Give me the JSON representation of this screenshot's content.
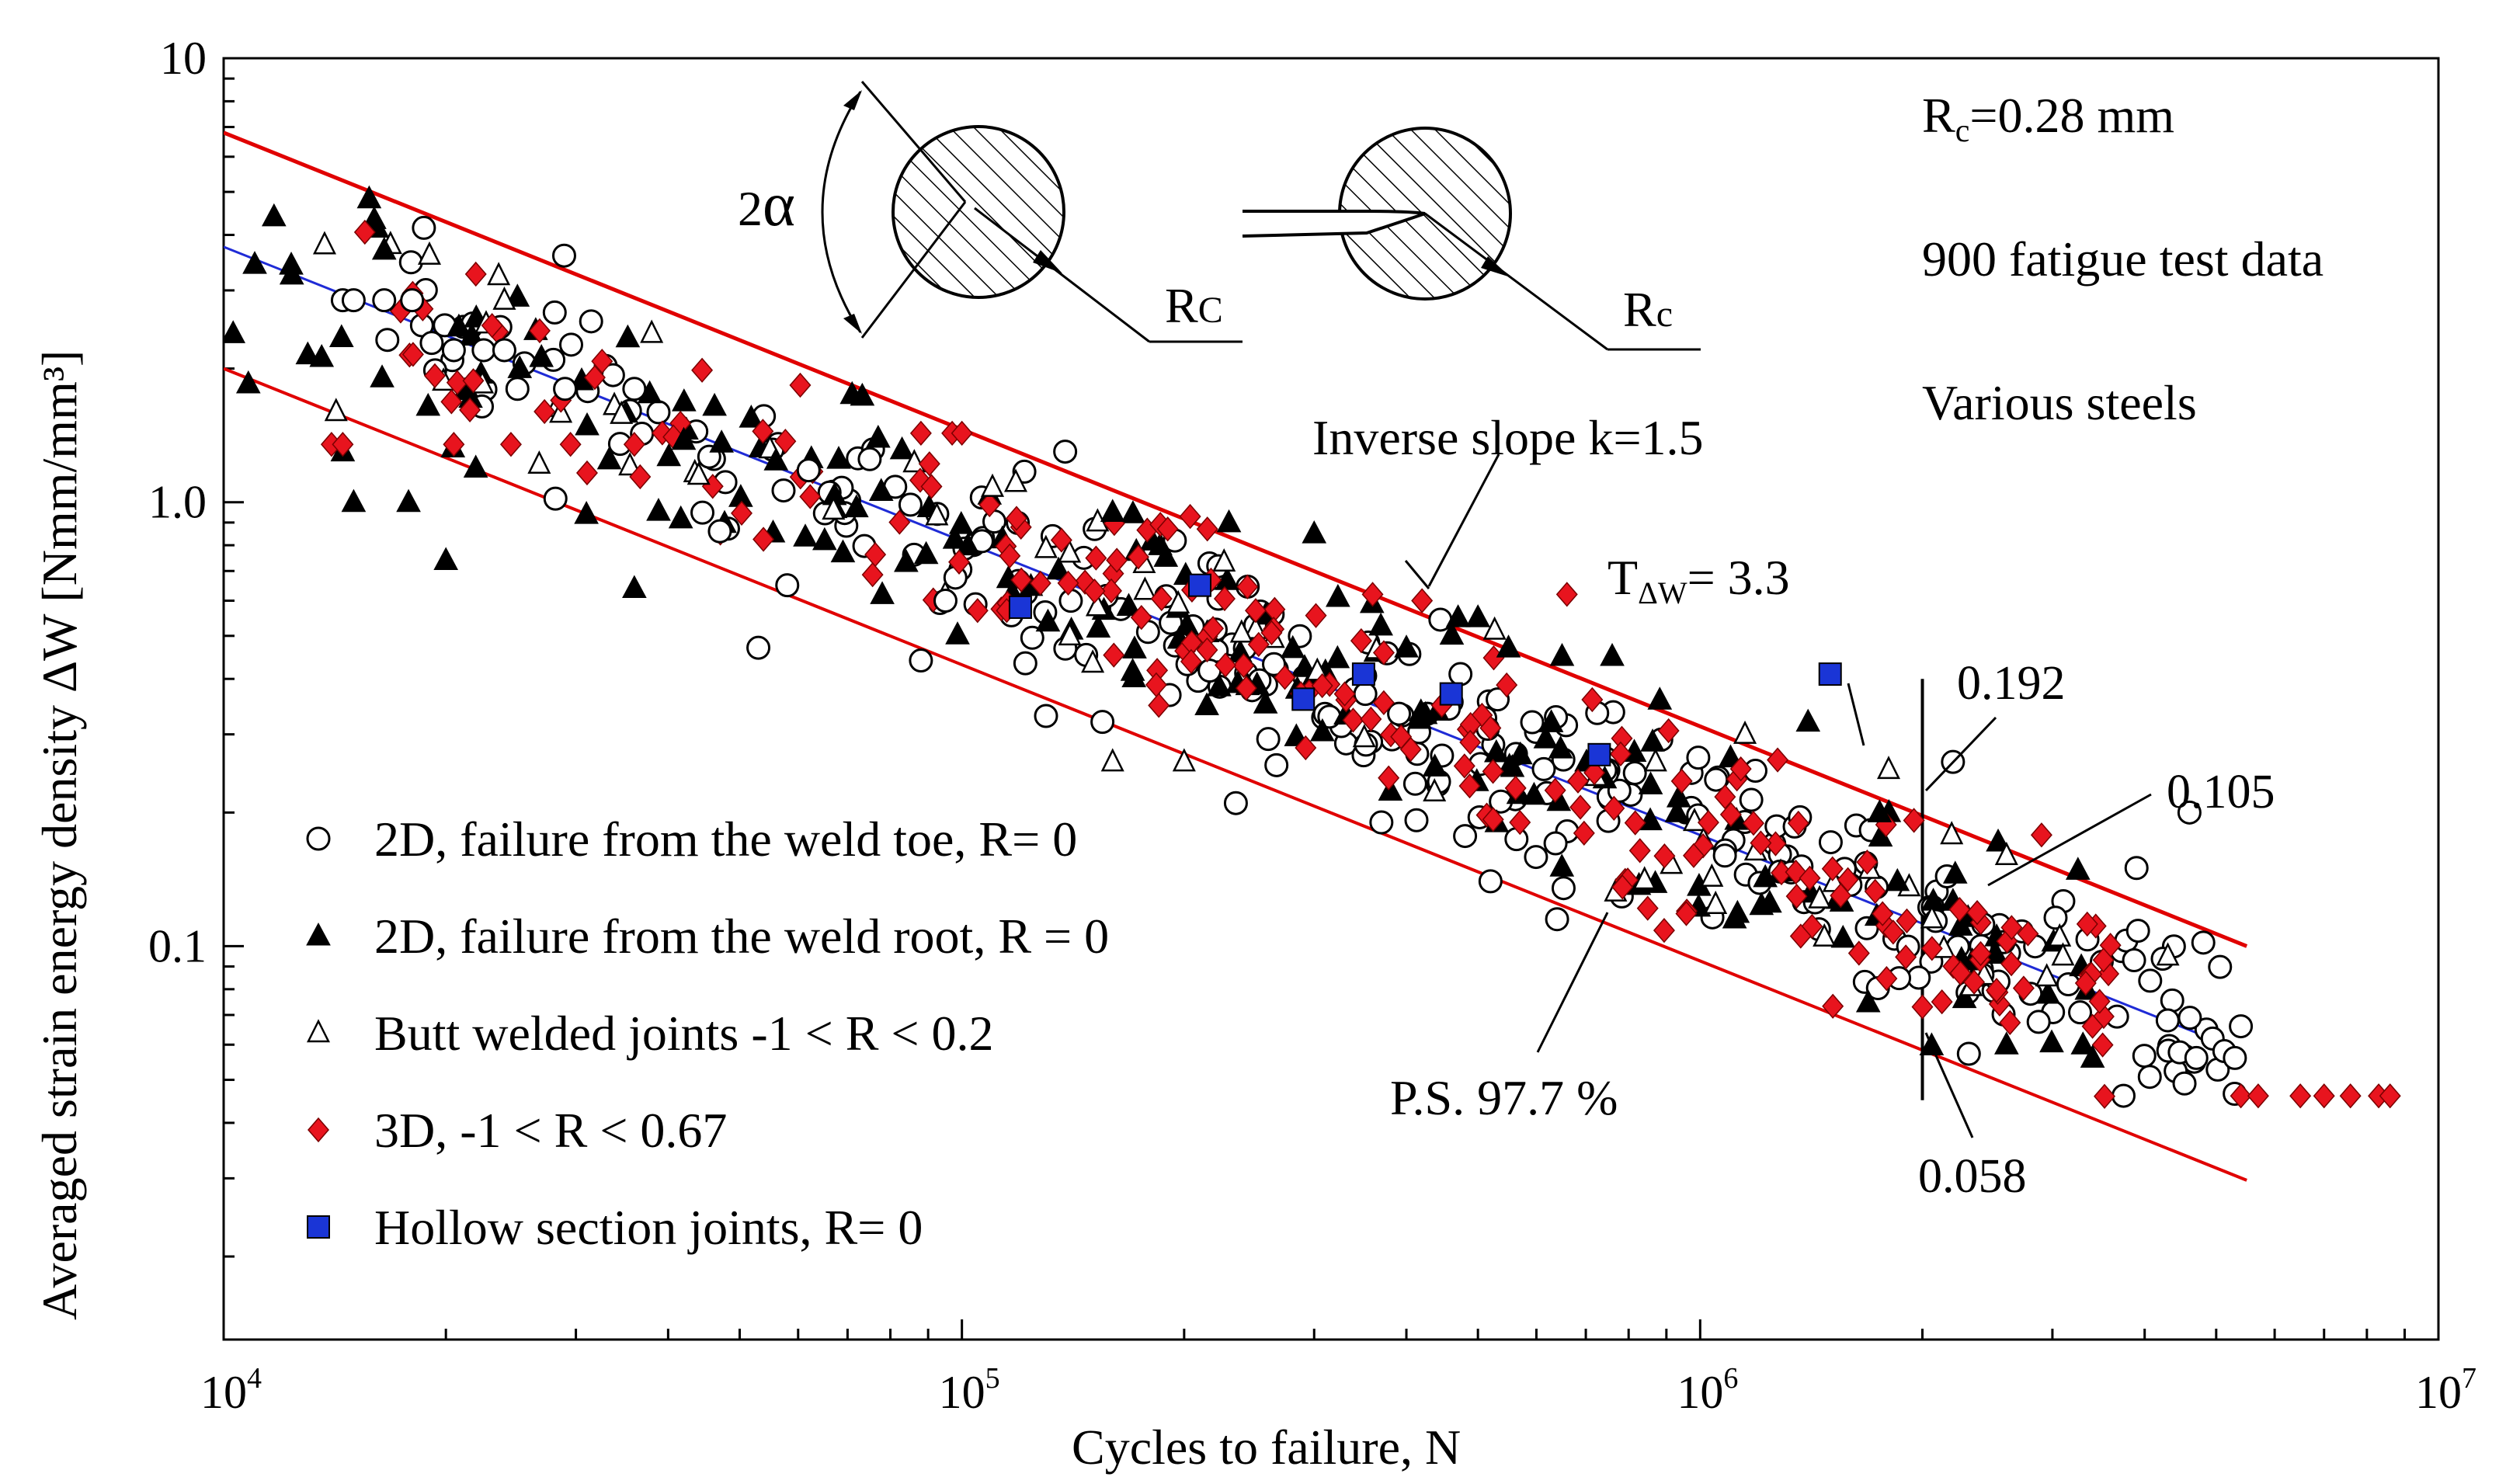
{
  "chart_data": {
    "type": "scatter",
    "xscale": "log",
    "yscale": "log",
    "xlim": [
      10000,
      10000000
    ],
    "ylim": [
      0.013,
      10
    ],
    "grid": false,
    "title": "",
    "xlabel": "Cycles to failure, N",
    "ylabel": "Averaged strain energy density ΔW [Nmm/mm³]",
    "x_ticks": [
      {
        "value": 10000,
        "base": "10",
        "exp": "4"
      },
      {
        "value": 100000,
        "base": "10",
        "exp": "5"
      },
      {
        "value": 1000000,
        "base": "10",
        "exp": "6"
      },
      {
        "value": 10000000,
        "base": "10",
        "exp": "7"
      }
    ],
    "y_ticks": [
      {
        "value": 10,
        "label": "10"
      },
      {
        "value": 1,
        "label": "1.0"
      },
      {
        "value": 0.1,
        "label": "0.1"
      }
    ],
    "legend_position": "bottom-left",
    "legend": [
      {
        "marker": "open-circle",
        "label": "2D, failure from the weld toe, R= 0"
      },
      {
        "marker": "filled-triangle",
        "label": "2D, failure from the weld root, R = 0"
      },
      {
        "marker": "open-triangle",
        "label": "Butt welded joints -1 < R < 0.2"
      },
      {
        "marker": "red-diamond",
        "label": "3D, -1 < R < 0.67"
      },
      {
        "marker": "blue-square",
        "label": "Hollow section joints, R= 0"
      }
    ],
    "scatter_bands": [
      {
        "series": "2D, failure from the weld toe, R= 0",
        "n": 280,
        "x_range": [
          14000,
          5300000
        ],
        "spread": 0.6,
        "seed": 11
      },
      {
        "series": "2D, failure from the weld root, R = 0",
        "n": 170,
        "x_range": [
          10200,
          3400000
        ],
        "spread": 0.72,
        "seed": 23
      },
      {
        "series": "Butt welded joints -1 < R < 0.2",
        "n": 55,
        "x_range": [
          14000,
          4600000
        ],
        "spread": 0.6,
        "seed": 37
      },
      {
        "series": "3D, -1 < R < 0.67",
        "n": 200,
        "x_range": [
          14000,
          3600000
        ],
        "spread": 0.62,
        "seed": 51
      }
    ],
    "series": [
      {
        "name": "2D, failure from the weld toe, R= 0",
        "marker": "open-circle",
        "points": [
          [
            14500,
            2.85
          ],
          [
            15000,
            2.85
          ],
          [
            16500,
            2.85
          ],
          [
            18000,
            2.85
          ],
          [
            20500,
            2.2
          ],
          [
            22500,
            2.2
          ],
          [
            24000,
            2.2
          ],
          [
            25000,
            1.8
          ],
          [
            29000,
            1.8
          ],
          [
            36000,
            1.8
          ],
          [
            47000,
            0.86
          ],
          [
            53000,
            0.47
          ],
          [
            58000,
            0.65
          ],
          [
            62000,
            1.18
          ],
          [
            75000,
            1.25
          ],
          [
            88000,
            0.44
          ],
          [
            95000,
            0.6
          ],
          [
            130000,
            0.33
          ],
          [
            138000,
            1.3
          ],
          [
            155000,
            0.32
          ],
          [
            235000,
            0.21
          ],
          [
            370000,
            0.19
          ],
          [
            520000,
            0.14
          ],
          [
            640000,
            0.115
          ],
          [
            1080000,
            0.16
          ],
          [
            2200000,
            0.26
          ],
          [
            3900000,
            0.15
          ],
          [
            4600000,
            0.2
          ],
          [
            4700000,
            0.056
          ],
          [
            5300000,
            0.056
          ],
          [
            5400000,
            0.066
          ]
        ]
      },
      {
        "name": "2D, failure from the weld root, R = 0",
        "marker": "filled-triangle",
        "points": [
          [
            10300,
            2.4
          ],
          [
            10800,
            1.85
          ],
          [
            11700,
            4.4
          ],
          [
            13000,
            2.15
          ],
          [
            14500,
            1.3
          ],
          [
            15000,
            1.0
          ],
          [
            16500,
            3.7
          ],
          [
            17800,
            1.0
          ],
          [
            20000,
            0.74
          ],
          [
            25000,
            2.9
          ],
          [
            31000,
            0.94
          ],
          [
            36000,
            0.64
          ],
          [
            42000,
            1.38
          ],
          [
            56000,
            1.24
          ],
          [
            69000,
            0.77
          ],
          [
            71000,
            1.75
          ],
          [
            78000,
            0.62
          ],
          [
            160000,
            0.95
          ],
          [
            230000,
            0.9
          ],
          [
            300000,
            0.85
          ],
          [
            400000,
            0.47
          ],
          [
            470000,
            0.55
          ],
          [
            500000,
            0.55
          ],
          [
            550000,
            0.47
          ],
          [
            650000,
            0.45
          ],
          [
            760000,
            0.45
          ],
          [
            1400000,
            0.32
          ],
          [
            1750000,
            0.2
          ],
          [
            1850000,
            0.14
          ],
          [
            2600000,
            0.06
          ],
          [
            3300000,
            0.06
          ],
          [
            3400000,
            0.056
          ]
        ]
      },
      {
        "name": "Butt welded joints -1 < R < 0.2",
        "marker": "open-triangle",
        "points": [
          [
            13700,
            3.8
          ],
          [
            14200,
            1.6
          ],
          [
            19000,
            3.6
          ],
          [
            24000,
            2.85
          ],
          [
            38000,
            2.4
          ],
          [
            44000,
            1.15
          ],
          [
            67000,
            0.96
          ],
          [
            110000,
            1.08
          ],
          [
            140000,
            0.5
          ],
          [
            160000,
            0.26
          ],
          [
            200000,
            0.26
          ],
          [
            870000,
            0.26
          ],
          [
            1150000,
            0.3
          ],
          [
            1800000,
            0.25
          ],
          [
            2600000,
            0.16
          ],
          [
            3100000,
            0.095
          ],
          [
            4300000,
            0.095
          ]
        ]
      },
      {
        "name": "3D, -1 < R < 0.67",
        "marker": "red-diamond",
        "points": [
          [
            14000,
            1.35
          ],
          [
            14500,
            1.35
          ],
          [
            20500,
            1.35
          ],
          [
            24500,
            1.35
          ],
          [
            29500,
            1.35
          ],
          [
            36000,
            1.35
          ],
          [
            88000,
            1.43
          ],
          [
            97000,
            1.43
          ],
          [
            100000,
            1.43
          ],
          [
            105000,
            0.57
          ],
          [
            115000,
            0.57
          ],
          [
            190000,
            0.87
          ],
          [
            215000,
            0.87
          ],
          [
            250000,
            0.57
          ],
          [
            330000,
            0.37
          ],
          [
            360000,
            0.62
          ],
          [
            420000,
            0.6
          ],
          [
            520000,
            0.31
          ],
          [
            570000,
            0.19
          ],
          [
            660000,
            0.62
          ],
          [
            980000,
            0.16
          ],
          [
            1550000,
            0.13
          ],
          [
            2000000,
            0.073
          ],
          [
            2350000,
            0.083
          ],
          [
            2900000,
            0.178
          ],
          [
            3400000,
            0.066
          ],
          [
            5400000,
            0.046
          ],
          [
            5700000,
            0.046
          ],
          [
            6500000,
            0.046
          ],
          [
            7000000,
            0.046
          ],
          [
            7600000,
            0.046
          ],
          [
            8300000,
            0.046
          ],
          [
            8600000,
            0.046
          ]
        ]
      },
      {
        "name": "Hollow section joints, R= 0",
        "marker": "blue-square",
        "points": [
          [
            120000,
            0.58
          ],
          [
            210000,
            0.65
          ],
          [
            290000,
            0.36
          ],
          [
            350000,
            0.41
          ],
          [
            460000,
            0.37
          ],
          [
            1500000,
            0.41
          ],
          [
            730000,
            0.27
          ]
        ]
      }
    ],
    "lines": [
      {
        "name": "Mean scatter band line",
        "color": "#1f2bd6",
        "points": [
          [
            10000,
            3.76
          ],
          [
            5200000,
            0.0597
          ]
        ]
      },
      {
        "name": "Upper scatter band line",
        "color": "#e00000",
        "points": [
          [
            10000,
            6.8
          ],
          [
            5500000,
            0.1
          ]
        ]
      },
      {
        "name": "Lower scatter band line (P.S. 97.7 %)",
        "color": "#e00000",
        "points": [
          [
            10000,
            2.0
          ],
          [
            5500000,
            0.0297
          ]
        ]
      },
      {
        "name": "N = 2·10⁶ reference",
        "color": "#000000",
        "points": [
          [
            2000000,
            0.4
          ],
          [
            2000000,
            0.045
          ]
        ]
      }
    ],
    "annotations": {
      "rc_text": "R",
      "rc_sub": "c",
      "rc_rest": "=0.28 mm",
      "data_count": "900 fatigue test data",
      "material": "Various steels",
      "slope": "Inverse slope k=1.5",
      "scatter_T": "T",
      "scatter_sub": "ΔW",
      "scatter_value": "= 3.3",
      "upper_value": "0.192",
      "mean_value": "0.105",
      "lower_value": "0.058",
      "survival": "P.S. 97.7 %",
      "inset_angle_num": "2",
      "inset_angle_sym": "α",
      "inset_rc1_main": "R",
      "inset_rc1_sub": "C",
      "inset_rc2_main": "R",
      "inset_rc2_sub": "c"
    },
    "colors": {
      "band_red": "#e00000",
      "mean_blue": "#1f2bd6",
      "diamond_red": "#e8141e",
      "square_blue": "#1a35d6"
    }
  }
}
